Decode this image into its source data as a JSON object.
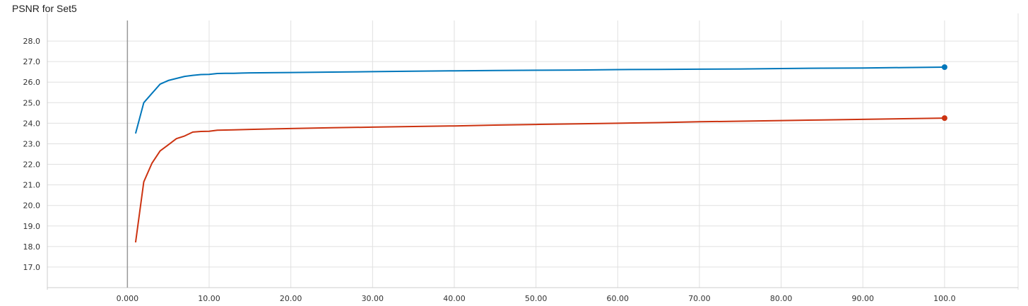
{
  "chart_data": {
    "type": "line",
    "title": "PSNR for Set5",
    "xlabel": "",
    "ylabel": "",
    "xlim": [
      -9.8,
      109
    ],
    "ylim": [
      16.0,
      29.0
    ],
    "grid": true,
    "x_ticks": [
      "0.000",
      "10.00",
      "20.00",
      "30.00",
      "40.00",
      "50.00",
      "60.00",
      "70.00",
      "80.00",
      "90.00",
      "100.0"
    ],
    "y_ticks": [
      "17.0",
      "18.0",
      "19.0",
      "20.0",
      "21.0",
      "22.0",
      "23.0",
      "24.0",
      "25.0",
      "26.0",
      "27.0",
      "28.0"
    ],
    "series": [
      {
        "color": "#0077bb",
        "points": [
          [
            1,
            23.5
          ],
          [
            2,
            25.0
          ],
          [
            3,
            25.45
          ],
          [
            4,
            25.9
          ],
          [
            5,
            26.08
          ],
          [
            6,
            26.18
          ],
          [
            7,
            26.28
          ],
          [
            8,
            26.33
          ],
          [
            9,
            26.37
          ],
          [
            10,
            26.38
          ],
          [
            11,
            26.42
          ],
          [
            12,
            26.43
          ],
          [
            13,
            26.43
          ],
          [
            14,
            26.44
          ],
          [
            15,
            26.45
          ],
          [
            20,
            26.47
          ],
          [
            25,
            26.49
          ],
          [
            30,
            26.51
          ],
          [
            35,
            26.53
          ],
          [
            40,
            26.55
          ],
          [
            45,
            26.57
          ],
          [
            50,
            26.58
          ],
          [
            55,
            26.59
          ],
          [
            60,
            26.61
          ],
          [
            65,
            26.62
          ],
          [
            70,
            26.63
          ],
          [
            75,
            26.64
          ],
          [
            80,
            26.66
          ],
          [
            85,
            26.68
          ],
          [
            90,
            26.69
          ],
          [
            95,
            26.71
          ],
          [
            98,
            26.72
          ],
          [
            100,
            26.73
          ]
        ]
      },
      {
        "color": "#cc3311",
        "points": [
          [
            1,
            18.2
          ],
          [
            2,
            21.15
          ],
          [
            3,
            22.05
          ],
          [
            4,
            22.65
          ],
          [
            5,
            22.95
          ],
          [
            6,
            23.25
          ],
          [
            7,
            23.38
          ],
          [
            8,
            23.57
          ],
          [
            9,
            23.6
          ],
          [
            10,
            23.61
          ],
          [
            11,
            23.66
          ],
          [
            12,
            23.67
          ],
          [
            13,
            23.68
          ],
          [
            15,
            23.7
          ],
          [
            20,
            23.74
          ],
          [
            25,
            23.78
          ],
          [
            30,
            23.81
          ],
          [
            35,
            23.84
          ],
          [
            40,
            23.87
          ],
          [
            45,
            23.91
          ],
          [
            50,
            23.94
          ],
          [
            55,
            23.97
          ],
          [
            60,
            24.0
          ],
          [
            65,
            24.03
          ],
          [
            70,
            24.07
          ],
          [
            75,
            24.1
          ],
          [
            80,
            24.13
          ],
          [
            85,
            24.16
          ],
          [
            90,
            24.19
          ],
          [
            95,
            24.22
          ],
          [
            100,
            24.25
          ]
        ]
      }
    ]
  }
}
